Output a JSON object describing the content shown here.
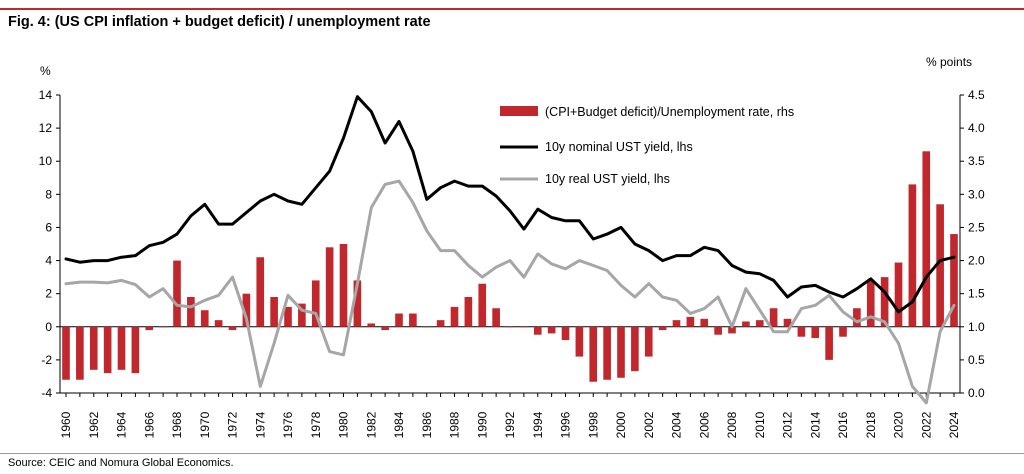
{
  "header": {
    "title": "Fig. 4: (US CPI inflation + budget deficit) / unemployment rate",
    "source": "Source: CEIC and Nomura Global Economics."
  },
  "colors": {
    "bar": "#c0282d",
    "nominal": "#000000",
    "real": "#a6a6a6",
    "accent_line": "#c0282d"
  },
  "chart_data": {
    "type": "bar+line",
    "title": "Fig. 4: (US CPI inflation + budget deficit) / unemployment rate",
    "y_left_unit": "%",
    "y_right_unit": "% points",
    "ylim_left": [
      -4,
      14
    ],
    "ylim_right": [
      0.0,
      4.5
    ],
    "y_left_ticks": [
      "14",
      "12",
      "10",
      "8",
      "6",
      "4",
      "2",
      "0",
      "-2",
      "-4"
    ],
    "y_right_ticks": [
      "4.5",
      "4.0",
      "3.5",
      "3.0",
      "2.5",
      "2.0",
      "1.5",
      "1.0",
      "0.5",
      "0.0"
    ],
    "x_tick_labels": [
      "1960",
      "1962",
      "1964",
      "1966",
      "1968",
      "1970",
      "1972",
      "1974",
      "1976",
      "1978",
      "1980",
      "1982",
      "1984",
      "1986",
      "1988",
      "1990",
      "1992",
      "1994",
      "1996",
      "1998",
      "2000",
      "2002",
      "2004",
      "2006",
      "2008",
      "2010",
      "2012",
      "2014",
      "2016",
      "2018",
      "2020",
      "2022",
      "2024"
    ],
    "legend": {
      "placement": "top-center",
      "entries": [
        "(CPI+Budget deficit)/Unemployment rate, rhs",
        "10y nominal UST yield, lhs",
        "10y real UST yield, lhs"
      ]
    },
    "years": [
      1960,
      1961,
      1962,
      1963,
      1964,
      1965,
      1966,
      1967,
      1968,
      1969,
      1970,
      1971,
      1972,
      1973,
      1974,
      1975,
      1976,
      1977,
      1978,
      1979,
      1980,
      1981,
      1982,
      1983,
      1984,
      1985,
      1986,
      1987,
      1988,
      1989,
      1990,
      1991,
      1992,
      1993,
      1994,
      1995,
      1996,
      1997,
      1998,
      1999,
      2000,
      2001,
      2002,
      2003,
      2004,
      2005,
      2006,
      2007,
      2008,
      2009,
      2010,
      2011,
      2012,
      2013,
      2014,
      2015,
      2016,
      2017,
      2018,
      2019,
      2020,
      2021,
      2022,
      2023,
      2024
    ],
    "series": [
      {
        "name": "(CPI+Budget deficit)/Unemployment rate, rhs",
        "type": "bar",
        "axis": "right",
        "values": [
          0.2,
          0.2,
          0.35,
          0.3,
          0.35,
          0.3,
          0.95,
          1.0,
          2.0,
          1.45,
          1.25,
          1.1,
          0.95,
          1.5,
          2.05,
          1.45,
          1.3,
          1.35,
          1.7,
          2.2,
          2.25,
          1.7,
          1.05,
          0.95,
          1.2,
          1.2,
          1.0,
          1.1,
          1.3,
          1.45,
          1.65,
          1.28,
          1.0,
          1.0,
          0.88,
          0.9,
          0.8,
          0.55,
          0.17,
          0.2,
          0.23,
          0.33,
          0.55,
          0.95,
          1.1,
          1.15,
          1.12,
          0.88,
          0.9,
          1.08,
          1.1,
          1.28,
          1.12,
          0.85,
          0.83,
          0.5,
          0.85,
          1.28,
          1.7,
          1.75,
          1.97,
          3.15,
          3.65,
          2.85,
          2.4
        ]
      },
      {
        "name": "10y nominal UST yield, lhs",
        "type": "line",
        "axis": "left",
        "values": [
          4.1,
          3.9,
          4.0,
          4.0,
          4.2,
          4.3,
          4.9,
          5.1,
          5.6,
          6.7,
          7.4,
          6.2,
          6.2,
          6.9,
          7.6,
          8.0,
          7.6,
          7.4,
          8.4,
          9.4,
          11.4,
          13.9,
          13.0,
          11.1,
          12.4,
          10.6,
          7.7,
          8.4,
          8.8,
          8.5,
          8.5,
          7.9,
          7.0,
          5.9,
          7.1,
          6.6,
          6.4,
          6.4,
          5.3,
          5.6,
          6.0,
          5.0,
          4.6,
          4.0,
          4.3,
          4.3,
          4.8,
          4.6,
          3.7,
          3.3,
          3.2,
          2.8,
          1.8,
          2.4,
          2.5,
          2.1,
          1.8,
          2.3,
          2.9,
          2.1,
          0.9,
          1.5,
          3.0,
          4.0,
          4.2
        ]
      },
      {
        "name": "10y real UST yield, lhs",
        "type": "line",
        "axis": "left",
        "values": [
          2.6,
          2.7,
          2.7,
          2.65,
          2.8,
          2.55,
          1.8,
          2.3,
          1.3,
          1.2,
          1.6,
          1.9,
          3.0,
          0.5,
          -3.6,
          -1.0,
          1.9,
          1.0,
          0.8,
          -1.5,
          -1.7,
          2.6,
          7.2,
          8.6,
          8.8,
          7.5,
          5.8,
          4.6,
          4.6,
          3.7,
          3.0,
          3.6,
          4.0,
          3.0,
          4.4,
          3.8,
          3.5,
          4.0,
          3.7,
          3.4,
          2.5,
          1.8,
          2.6,
          1.8,
          1.6,
          0.8,
          1.1,
          1.8,
          0.0,
          2.3,
          1.0,
          -0.3,
          -0.3,
          1.1,
          1.3,
          1.9,
          0.9,
          0.3,
          0.6,
          0.3,
          -1.0,
          -3.6,
          -4.6,
          -0.3,
          1.3
        ]
      }
    ]
  }
}
